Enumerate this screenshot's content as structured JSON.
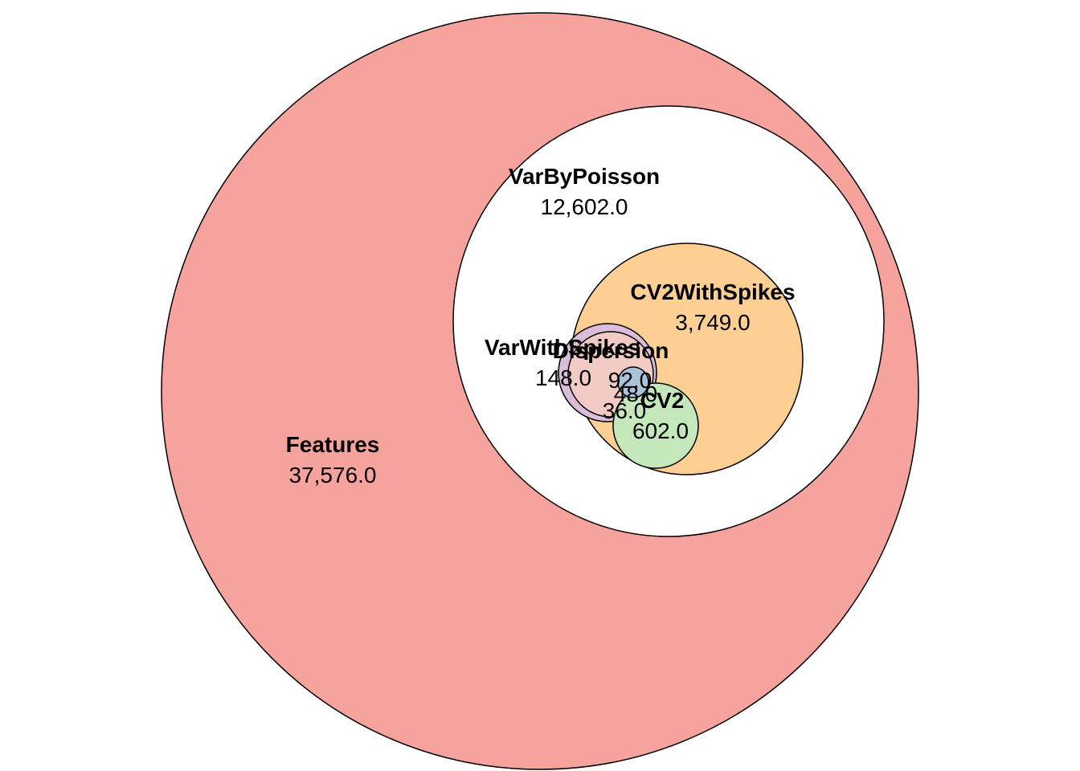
{
  "diagram": {
    "type": "euler",
    "sets": [
      {
        "id": "features",
        "name": "Features",
        "count": "37,576.0",
        "color": "#F7A39D"
      },
      {
        "id": "varbypoisson",
        "name": "VarByPoisson",
        "count": "12,602.0",
        "color": "#FFFFFF"
      },
      {
        "id": "cv2withspikes",
        "name": "CV2WithSpikes",
        "count": "3,749.0",
        "color": "#FDCF92"
      },
      {
        "id": "varwithspikes",
        "name": "VarWithSpikes",
        "count": "148.0",
        "color": "#DBBDDB"
      },
      {
        "id": "overlap-pink",
        "name": "Dispersion",
        "count": "92.0",
        "color": "#F1CBC4"
      },
      {
        "id": "overlap-blue",
        "name": "",
        "count": "48.0",
        "color": "#A9C3DB"
      },
      {
        "id": "cv2",
        "name": "CV2",
        "count": "602.0",
        "color": "#C4E7BB"
      }
    ],
    "extra_counts": {
      "small_overlap": "36.0"
    }
  }
}
